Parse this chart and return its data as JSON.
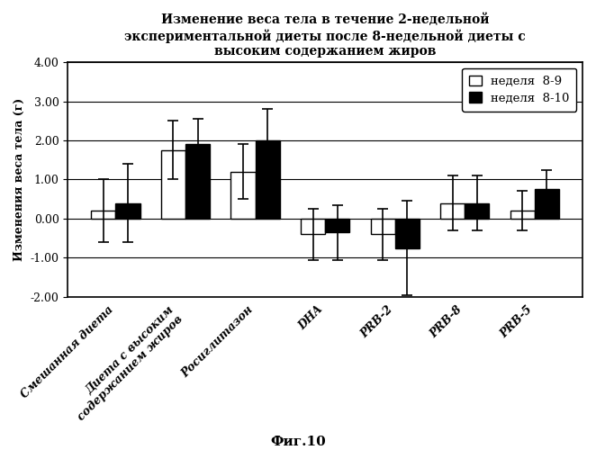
{
  "title": "Изменение веса тела в течение 2-недельной\nэкспериментальной диеты после 8-недельной диеты с\nвысоким содержанием жиров",
  "ylabel": "Изменения веса тела (г)",
  "caption": "Фиг.10",
  "categories": [
    "Смешанная диета",
    "Диета с высоким\nсодержанием жиров",
    "Росиглитазон",
    "DHA",
    "PRB-2",
    "PRB-8",
    "PRB-5"
  ],
  "week89_values": [
    0.2,
    1.75,
    1.2,
    -0.4,
    -0.4,
    0.4,
    0.2
  ],
  "week810_values": [
    0.4,
    1.9,
    2.0,
    -0.35,
    -0.75,
    0.4,
    0.75
  ],
  "week89_errors": [
    0.8,
    0.75,
    0.7,
    0.65,
    0.65,
    0.7,
    0.5
  ],
  "week810_errors": [
    1.0,
    0.65,
    0.8,
    0.7,
    1.2,
    0.7,
    0.5
  ],
  "ylim": [
    -2.0,
    4.0
  ],
  "yticks": [
    -2.0,
    -1.0,
    0.0,
    1.0,
    2.0,
    3.0,
    4.0
  ],
  "legend_labels": [
    "неделя  8-9",
    "неделя  8-10"
  ],
  "bar_width": 0.35,
  "background_color": "#ffffff",
  "title_fontsize": 10,
  "label_fontsize": 9,
  "tick_fontsize": 9,
  "caption_fontsize": 11
}
